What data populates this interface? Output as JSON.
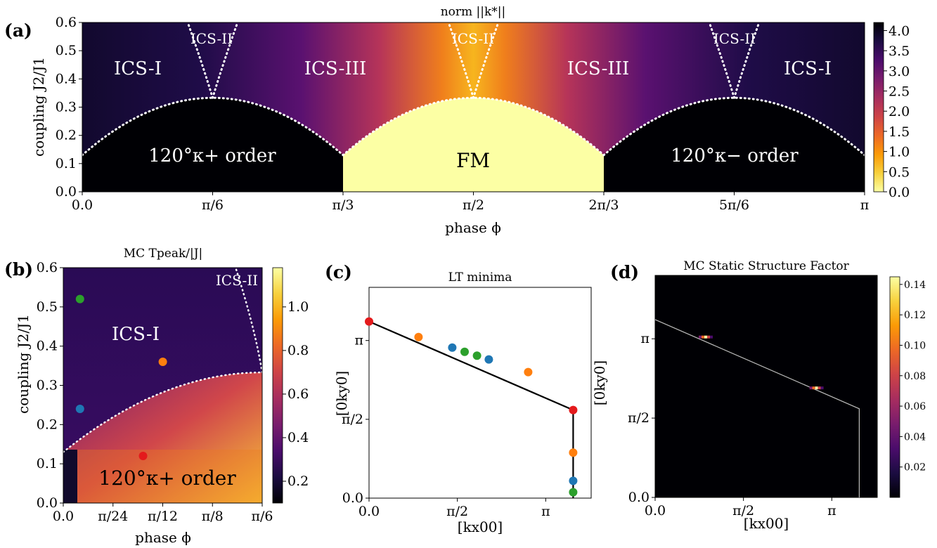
{
  "colors": {
    "inferno": [
      "#000004",
      "#1b0c41",
      "#4a0c6b",
      "#781c6d",
      "#a52c60",
      "#cf4446",
      "#ed6925",
      "#fb9b06",
      "#f7d13d",
      "#fcffa4"
    ],
    "dots": {
      "red": "#e41a1c",
      "orange": "#ff7f0e",
      "blue": "#1f77b4",
      "green": "#2ca02c"
    }
  },
  "chart_data": [
    {
      "panel": "(a)",
      "type": "heatmap",
      "title": "norm ||k*||",
      "xlabel": "phase ϕ",
      "ylabel": "coupling J2/J1",
      "xlim": [
        0,
        3.14159
      ],
      "ylim": [
        0,
        0.6
      ],
      "xticks": [
        "0.0",
        "π/6",
        "π/3",
        "π/2",
        "2π/3",
        "5π/6",
        "π"
      ],
      "yticks": [
        "0.0",
        "0.1",
        "0.2",
        "0.3",
        "0.4",
        "0.5",
        "0.6"
      ],
      "colorbar": {
        "min": 0.0,
        "max": 4.2,
        "ticks": [
          "0.0",
          "0.5",
          "1.0",
          "1.5",
          "2.0",
          "2.5",
          "3.0",
          "3.5",
          "4.0"
        ]
      },
      "regions": [
        "ICS-I",
        "ICS-II",
        "ICS-III",
        "ICS-II",
        "ICS-III",
        "ICS-II",
        "ICS-I",
        "120°κ+ order",
        "FM",
        "120°κ− order"
      ],
      "boundary_dome_peak": 0.333
    },
    {
      "panel": "(b)",
      "type": "heatmap",
      "title": "MC Tpeak/|J|",
      "xlabel": "phase ϕ",
      "ylabel": "coupling J2/J1",
      "xlim": [
        0,
        0.5236
      ],
      "ylim": [
        0,
        0.6
      ],
      "xticks": [
        "0.0",
        "π/24",
        "π/12",
        "π/8",
        "π/6"
      ],
      "yticks": [
        "0.0",
        "0.1",
        "0.2",
        "0.3",
        "0.4",
        "0.5",
        "0.6"
      ],
      "colorbar": {
        "min": 0.1,
        "max": 1.18,
        "ticks": [
          "0.2",
          "0.4",
          "0.6",
          "0.8",
          "1.0"
        ]
      },
      "regions": [
        "ICS-I",
        "ICS-II",
        "120°κ+ order"
      ],
      "points": [
        {
          "phi": 0.044,
          "J": 0.52,
          "color": "green"
        },
        {
          "phi": 0.044,
          "J": 0.24,
          "color": "blue"
        },
        {
          "phi": 0.262,
          "J": 0.36,
          "color": "orange"
        },
        {
          "phi": 0.21,
          "J": 0.12,
          "color": "red"
        }
      ]
    },
    {
      "panel": "(c)",
      "type": "scatter",
      "title": "LT minima",
      "xlabel": "[kx00]",
      "ylabel": "[0ky0]",
      "xlim": [
        0,
        3.95
      ],
      "ylim": [
        0,
        5.0
      ],
      "xticks": [
        "0.0",
        "π/2",
        "π"
      ],
      "yticks": [
        "0.0",
        "π/2",
        "π"
      ],
      "line": [
        [
          0.0,
          4.19
        ],
        [
          3.63,
          2.09
        ],
        [
          3.63,
          0.0
        ]
      ],
      "points": [
        {
          "x": 0.0,
          "y": 4.19,
          "color": "red"
        },
        {
          "x": 0.88,
          "y": 3.82,
          "color": "orange"
        },
        {
          "x": 1.48,
          "y": 3.57,
          "color": "blue"
        },
        {
          "x": 1.7,
          "y": 3.47,
          "color": "green"
        },
        {
          "x": 1.92,
          "y": 3.38,
          "color": "green"
        },
        {
          "x": 2.13,
          "y": 3.29,
          "color": "blue"
        },
        {
          "x": 2.83,
          "y": 2.99,
          "color": "orange"
        },
        {
          "x": 3.63,
          "y": 2.09,
          "color": "red"
        },
        {
          "x": 3.63,
          "y": 1.08,
          "color": "orange"
        },
        {
          "x": 3.63,
          "y": 0.41,
          "color": "blue"
        },
        {
          "x": 3.63,
          "y": 0.14,
          "color": "green"
        }
      ]
    },
    {
      "panel": "(d)",
      "type": "heatmap",
      "title": "MC Static Structure Factor",
      "xlabel": "[kx00]",
      "ylabel": "[0ky0]",
      "xlim": [
        0,
        3.95
      ],
      "ylim": [
        0,
        5.0
      ],
      "xticks": [
        "0.0",
        "π/2",
        "π"
      ],
      "yticks": [
        "0.0",
        "π/2",
        "π"
      ],
      "colorbar": {
        "min": 0.0,
        "max": 0.145,
        "ticks": [
          "0.02",
          "0.04",
          "0.06",
          "0.08",
          "0.10",
          "0.12",
          "0.14"
        ]
      },
      "line": [
        [
          0.0,
          4.19
        ],
        [
          3.63,
          2.09
        ],
        [
          3.63,
          0.0
        ]
      ],
      "peaks": [
        {
          "x": 0.9,
          "y": 3.78
        },
        {
          "x": 2.87,
          "y": 2.58
        }
      ]
    }
  ]
}
